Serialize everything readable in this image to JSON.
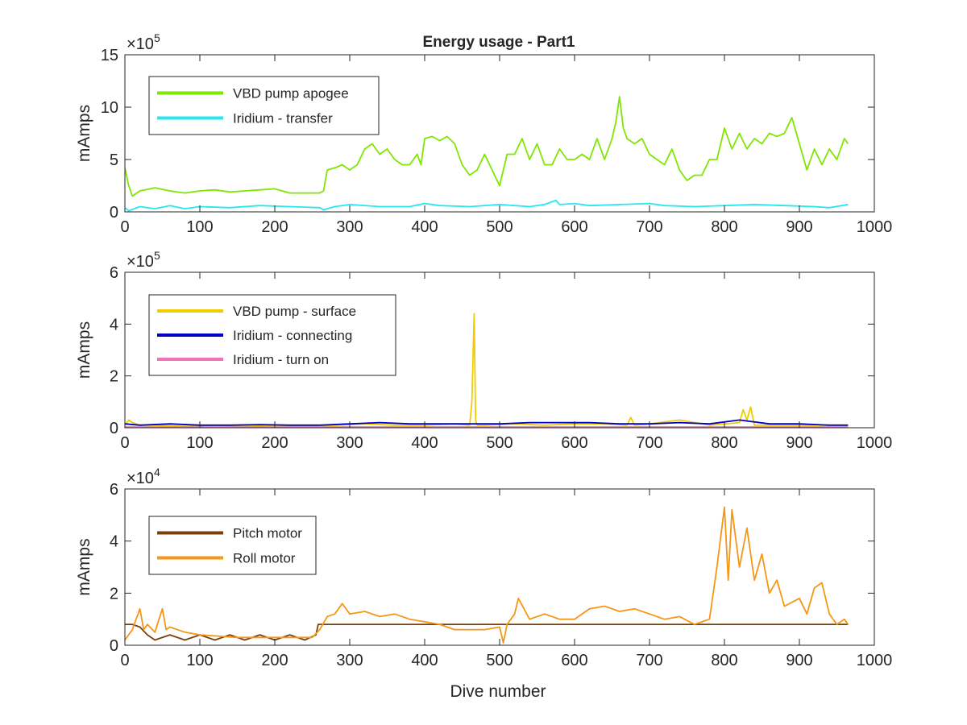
{
  "figure": {
    "title": "Energy usage - Part1"
  },
  "chart_data": [
    {
      "type": "line",
      "title": "Energy usage - Part1",
      "xlabel": "",
      "ylabel": "mAmps",
      "xlim": [
        0,
        1000
      ],
      "ylim": [
        0,
        15
      ],
      "y_exponent": "5",
      "xticks": [
        "0",
        "100",
        "200",
        "300",
        "400",
        "500",
        "600",
        "700",
        "800",
        "900",
        "1000"
      ],
      "yticks": [
        "0",
        "5",
        "10",
        "15"
      ],
      "grid": false,
      "legend_position": "top-left",
      "series": [
        {
          "name": "VBD pump apogee",
          "color": "#7fe600",
          "x": [
            0,
            5,
            10,
            20,
            40,
            60,
            80,
            100,
            120,
            140,
            160,
            180,
            200,
            220,
            240,
            260,
            265,
            270,
            280,
            290,
            300,
            310,
            320,
            330,
            340,
            350,
            360,
            370,
            380,
            390,
            395,
            400,
            410,
            420,
            430,
            440,
            450,
            460,
            470,
            480,
            490,
            500,
            510,
            520,
            530,
            540,
            550,
            560,
            570,
            580,
            590,
            600,
            610,
            620,
            630,
            640,
            650,
            655,
            660,
            665,
            670,
            680,
            690,
            700,
            710,
            720,
            730,
            740,
            750,
            760,
            770,
            780,
            790,
            800,
            810,
            820,
            830,
            840,
            850,
            860,
            870,
            880,
            890,
            900,
            910,
            920,
            930,
            940,
            950,
            960,
            965
          ],
          "y": [
            4.2,
            2.5,
            1.5,
            2.0,
            2.3,
            2.0,
            1.8,
            2.0,
            2.1,
            1.9,
            2.0,
            2.1,
            2.2,
            1.8,
            1.8,
            1.8,
            2.0,
            4.0,
            4.2,
            4.5,
            4.0,
            4.5,
            6.0,
            6.5,
            5.5,
            6.0,
            5.0,
            4.5,
            4.5,
            5.5,
            4.5,
            7.0,
            7.2,
            6.8,
            7.2,
            6.5,
            4.5,
            3.5,
            4.0,
            5.5,
            4.0,
            2.5,
            5.5,
            5.5,
            7.0,
            5.0,
            6.5,
            4.5,
            4.5,
            6.0,
            5.0,
            5.0,
            5.5,
            5.0,
            7.0,
            5.0,
            7.0,
            8.5,
            11.0,
            8.0,
            7.0,
            6.5,
            7.0,
            5.5,
            5.0,
            4.5,
            6.0,
            4.0,
            3.0,
            3.5,
            3.5,
            5.0,
            5.0,
            8.0,
            6.0,
            7.5,
            6.0,
            7.0,
            6.5,
            7.5,
            7.2,
            7.5,
            9.0,
            6.5,
            4.0,
            6.0,
            4.5,
            6.0,
            5.0,
            7.0,
            6.5
          ]
        },
        {
          "name": "Iridium - transfer",
          "color": "#26e6f0",
          "x": [
            0,
            5,
            20,
            40,
            60,
            80,
            100,
            140,
            180,
            220,
            260,
            265,
            270,
            280,
            300,
            340,
            380,
            400,
            420,
            460,
            500,
            540,
            560,
            575,
            580,
            600,
            620,
            660,
            700,
            720,
            760,
            800,
            840,
            880,
            920,
            940,
            965
          ],
          "y": [
            0.4,
            0.1,
            0.5,
            0.3,
            0.6,
            0.3,
            0.5,
            0.4,
            0.6,
            0.5,
            0.4,
            0.2,
            0.3,
            0.5,
            0.7,
            0.5,
            0.5,
            0.8,
            0.6,
            0.5,
            0.7,
            0.5,
            0.7,
            1.1,
            0.7,
            0.8,
            0.6,
            0.7,
            0.8,
            0.6,
            0.5,
            0.6,
            0.7,
            0.6,
            0.5,
            0.4,
            0.7
          ]
        }
      ]
    },
    {
      "type": "line",
      "title": "",
      "xlabel": "",
      "ylabel": "mAmps",
      "xlim": [
        0,
        1000
      ],
      "ylim": [
        0,
        6
      ],
      "y_exponent": "5",
      "xticks": [
        "0",
        "100",
        "200",
        "300",
        "400",
        "500",
        "600",
        "700",
        "800",
        "900",
        "1000"
      ],
      "yticks": [
        "0",
        "2",
        "4",
        "6"
      ],
      "grid": false,
      "legend_position": "top-left",
      "series": [
        {
          "name": "VBD pump - surface",
          "color": "#f0cc00",
          "x": [
            0,
            5,
            10,
            20,
            40,
            80,
            120,
            160,
            200,
            240,
            280,
            320,
            360,
            400,
            440,
            460,
            463,
            466,
            468,
            470,
            480,
            520,
            560,
            600,
            640,
            670,
            675,
            680,
            700,
            740,
            780,
            820,
            825,
            830,
            835,
            840,
            880,
            920,
            965
          ],
          "y": [
            0.1,
            0.3,
            0.2,
            0.1,
            0.1,
            0.05,
            0.1,
            0.05,
            0.1,
            0.05,
            0.1,
            0.15,
            0.1,
            0.1,
            0.15,
            0.1,
            1.0,
            4.4,
            0.3,
            0.1,
            0.1,
            0.15,
            0.1,
            0.15,
            0.15,
            0.1,
            0.4,
            0.1,
            0.15,
            0.3,
            0.1,
            0.2,
            0.7,
            0.3,
            0.8,
            0.1,
            0.1,
            0.1,
            0.1
          ]
        },
        {
          "name": "Iridium - connecting",
          "color": "#0000c8",
          "x": [
            0,
            20,
            60,
            100,
            140,
            180,
            220,
            260,
            300,
            340,
            380,
            420,
            460,
            500,
            540,
            580,
            620,
            660,
            700,
            740,
            780,
            820,
            860,
            900,
            940,
            965
          ],
          "y": [
            0.15,
            0.1,
            0.15,
            0.1,
            0.1,
            0.12,
            0.1,
            0.1,
            0.15,
            0.2,
            0.15,
            0.15,
            0.15,
            0.15,
            0.2,
            0.2,
            0.2,
            0.15,
            0.15,
            0.2,
            0.15,
            0.3,
            0.15,
            0.15,
            0.1,
            0.1
          ]
        },
        {
          "name": "Iridium - turn on",
          "color": "#f075b4",
          "x": [
            0,
            100,
            200,
            300,
            400,
            500,
            600,
            700,
            800,
            900,
            965
          ],
          "y": [
            0.03,
            0.03,
            0.03,
            0.03,
            0.03,
            0.03,
            0.03,
            0.03,
            0.03,
            0.03,
            0.03
          ]
        }
      ]
    },
    {
      "type": "line",
      "title": "",
      "xlabel": "Dive number",
      "ylabel": "mAmps",
      "xlim": [
        0,
        1000
      ],
      "ylim": [
        0,
        6
      ],
      "y_exponent": "4",
      "xticks": [
        "0",
        "100",
        "200",
        "300",
        "400",
        "500",
        "600",
        "700",
        "800",
        "900",
        "1000"
      ],
      "yticks": [
        "0",
        "2",
        "4",
        "6"
      ],
      "grid": false,
      "legend_position": "top-left",
      "series": [
        {
          "name": "Pitch motor",
          "color": "#7a3f0f",
          "x": [
            0,
            10,
            20,
            30,
            40,
            60,
            80,
            100,
            120,
            140,
            160,
            180,
            200,
            220,
            240,
            255,
            258,
            260,
            300,
            400,
            500,
            600,
            700,
            800,
            900,
            965
          ],
          "y": [
            0.8,
            0.8,
            0.7,
            0.4,
            0.2,
            0.4,
            0.2,
            0.4,
            0.2,
            0.4,
            0.2,
            0.4,
            0.2,
            0.4,
            0.2,
            0.4,
            0.8,
            0.8,
            0.8,
            0.8,
            0.8,
            0.8,
            0.8,
            0.8,
            0.8,
            0.8
          ]
        },
        {
          "name": "Roll motor",
          "color": "#f59614",
          "x": [
            0,
            10,
            20,
            25,
            30,
            40,
            50,
            55,
            60,
            80,
            100,
            150,
            200,
            250,
            260,
            270,
            280,
            290,
            300,
            320,
            340,
            360,
            380,
            400,
            420,
            440,
            460,
            480,
            500,
            505,
            510,
            520,
            525,
            540,
            560,
            580,
            600,
            620,
            640,
            660,
            680,
            700,
            720,
            740,
            760,
            780,
            790,
            800,
            805,
            810,
            820,
            830,
            840,
            850,
            860,
            870,
            880,
            900,
            910,
            920,
            930,
            940,
            950,
            960,
            965
          ],
          "y": [
            0.2,
            0.6,
            1.4,
            0.6,
            0.8,
            0.5,
            1.4,
            0.6,
            0.7,
            0.5,
            0.4,
            0.3,
            0.3,
            0.3,
            0.6,
            1.1,
            1.2,
            1.6,
            1.2,
            1.3,
            1.1,
            1.2,
            1.0,
            0.9,
            0.8,
            0.6,
            0.6,
            0.6,
            0.7,
            0.1,
            0.8,
            1.2,
            1.8,
            1.0,
            1.2,
            1.0,
            1.0,
            1.4,
            1.5,
            1.3,
            1.4,
            1.2,
            1.0,
            1.1,
            0.8,
            1.0,
            3.0,
            5.3,
            2.5,
            5.2,
            3.0,
            4.5,
            2.5,
            3.5,
            2.0,
            2.5,
            1.5,
            1.8,
            1.2,
            2.2,
            2.4,
            1.2,
            0.8,
            1.0,
            0.8
          ]
        }
      ]
    }
  ]
}
